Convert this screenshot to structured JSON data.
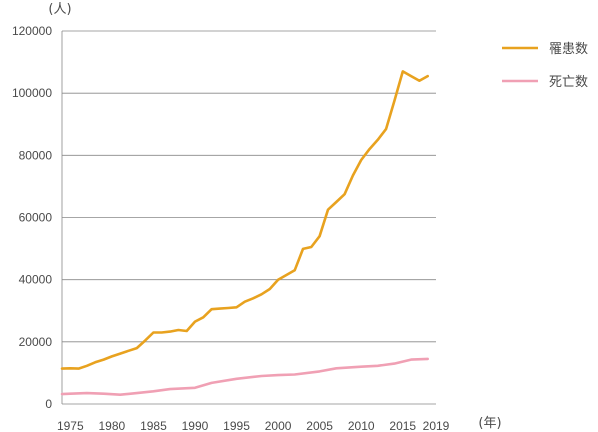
{
  "chart_data": {
    "type": "line",
    "ylabel": "(人)",
    "xlabel": "(年)",
    "ylim": [
      0,
      120000
    ],
    "xlim": [
      1974,
      2019
    ],
    "y_ticks": [
      "0",
      "20000",
      "40000",
      "60000",
      "80000",
      "100000",
      "120000"
    ],
    "x_ticks": [
      "1975",
      "1980",
      "1985",
      "1990",
      "1995",
      "2000",
      "2005",
      "2010",
      "2015",
      "2019"
    ],
    "grid": "horizontal",
    "legend_position": "top-right",
    "series": [
      {
        "name": "罹患数",
        "color": "#E8A21F",
        "points": [
          [
            1974,
            11400
          ],
          [
            1975,
            11500
          ],
          [
            1976,
            11400
          ],
          [
            1977,
            12300
          ],
          [
            1978,
            13400
          ],
          [
            1979,
            14300
          ],
          [
            1980,
            15300
          ],
          [
            1981,
            16200
          ],
          [
            1982,
            17100
          ],
          [
            1983,
            18000
          ],
          [
            1984,
            20400
          ],
          [
            1985,
            23000
          ],
          [
            1986,
            23000
          ],
          [
            1987,
            23300
          ],
          [
            1988,
            23800
          ],
          [
            1989,
            23500
          ],
          [
            1990,
            26500
          ],
          [
            1991,
            27900
          ],
          [
            1992,
            30500
          ],
          [
            1993,
            30700
          ],
          [
            1994,
            30900
          ],
          [
            1995,
            31100
          ],
          [
            1996,
            32900
          ],
          [
            1997,
            34000
          ],
          [
            1998,
            35300
          ],
          [
            1999,
            37000
          ],
          [
            2000,
            40000
          ],
          [
            2001,
            41500
          ],
          [
            2002,
            43000
          ],
          [
            2003,
            49900
          ],
          [
            2004,
            50500
          ],
          [
            2005,
            54000
          ],
          [
            2006,
            62500
          ],
          [
            2007,
            65000
          ],
          [
            2008,
            67500
          ],
          [
            2009,
            73500
          ],
          [
            2010,
            78500
          ],
          [
            2011,
            82000
          ],
          [
            2012,
            85000
          ],
          [
            2013,
            88500
          ],
          [
            2014,
            97500
          ],
          [
            2015,
            107000
          ],
          [
            2016,
            105500
          ],
          [
            2017,
            104000
          ],
          [
            2018,
            105500
          ]
        ]
      },
      {
        "name": "死亡数",
        "color": "#F0A0B4",
        "points": [
          [
            1974,
            3200
          ],
          [
            1975,
            3300
          ],
          [
            1977,
            3500
          ],
          [
            1979,
            3300
          ],
          [
            1981,
            3000
          ],
          [
            1983,
            3500
          ],
          [
            1985,
            4100
          ],
          [
            1987,
            4800
          ],
          [
            1990,
            5200
          ],
          [
            1992,
            6800
          ],
          [
            1995,
            8100
          ],
          [
            1998,
            9000
          ],
          [
            2000,
            9300
          ],
          [
            2002,
            9500
          ],
          [
            2005,
            10500
          ],
          [
            2007,
            11500
          ],
          [
            2010,
            12000
          ],
          [
            2012,
            12300
          ],
          [
            2014,
            13000
          ],
          [
            2016,
            14300
          ],
          [
            2018,
            14500
          ]
        ]
      }
    ]
  }
}
